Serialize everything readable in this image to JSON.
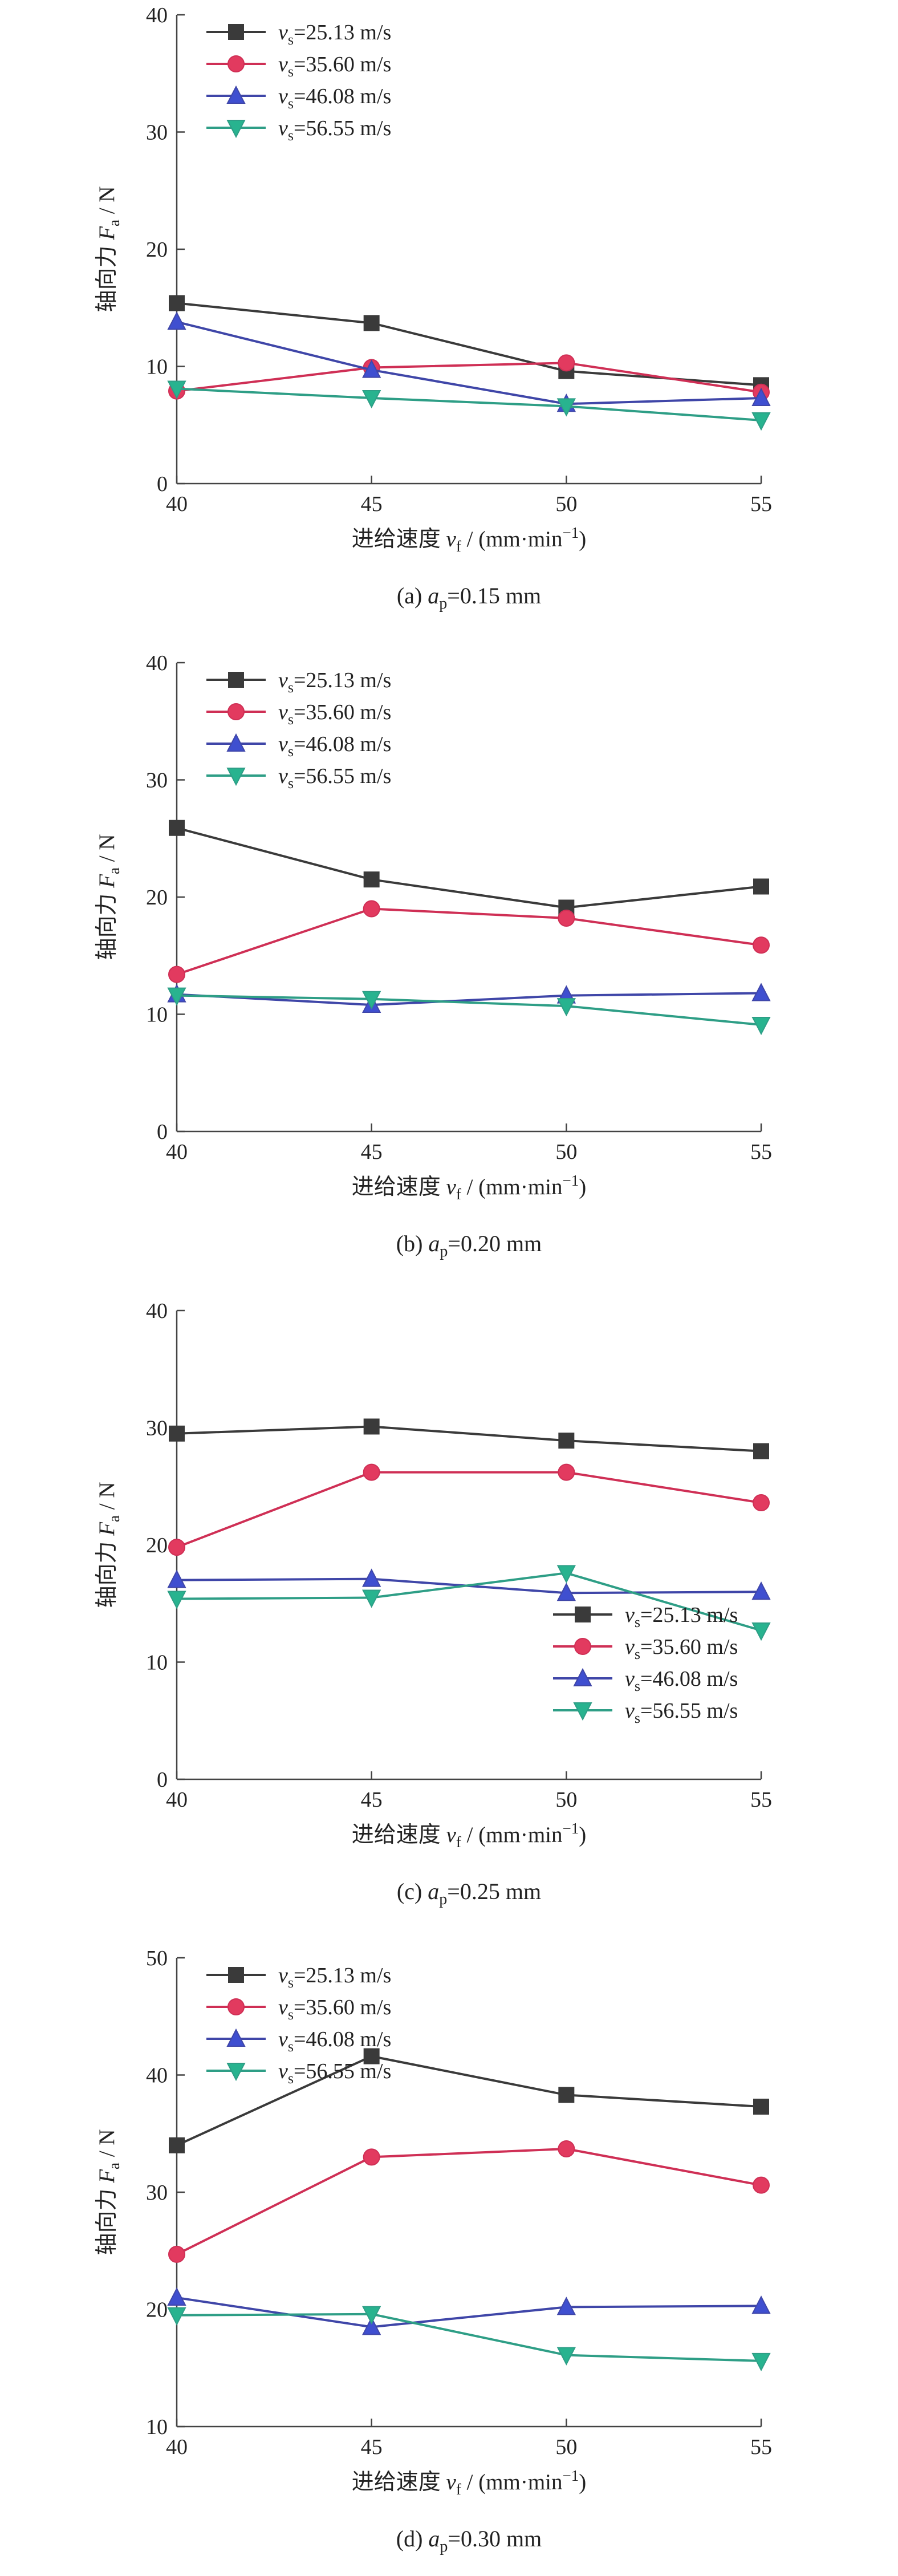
{
  "chart_data": [
    {
      "type": "line",
      "caption": {
        "prefix": "(a) ",
        "var": "a",
        "sub": "p",
        "rest": "=0.15 mm"
      },
      "xlabel": {
        "main": "进给速度 ",
        "var": "v",
        "sub": "f",
        "unit": " / (mm·min",
        "sup": "−1",
        "close": ")"
      },
      "ylabel": {
        "main": "轴向力 ",
        "var": "F",
        "sub": "a",
        "unit": " / N"
      },
      "x": [
        40,
        45,
        50,
        55
      ],
      "xlim": [
        40,
        55
      ],
      "ylim": [
        0,
        40
      ],
      "xticks": [
        "40",
        "45",
        "50",
        "55"
      ],
      "yticks": [
        "0",
        "10",
        "20",
        "30",
        "40"
      ],
      "ytick_values": [
        0,
        10,
        20,
        30,
        40
      ],
      "legend_position": "top-left",
      "series": [
        {
          "name": "vs=25.13 m/s",
          "values": [
            15.4,
            13.7,
            9.6,
            8.4
          ]
        },
        {
          "name": "vs=35.60 m/s",
          "values": [
            7.9,
            9.9,
            10.3,
            7.8
          ]
        },
        {
          "name": "vs=46.08 m/s",
          "values": [
            13.8,
            9.7,
            6.8,
            7.3
          ]
        },
        {
          "name": "vs=56.55 m/s",
          "values": [
            8.1,
            7.3,
            6.6,
            5.4
          ]
        }
      ]
    },
    {
      "type": "line",
      "caption": {
        "prefix": "(b) ",
        "var": "a",
        "sub": "p",
        "rest": "=0.20 mm"
      },
      "xlabel": {
        "main": "进给速度 ",
        "var": "v",
        "sub": "f",
        "unit": " / (mm·min",
        "sup": "−1",
        "close": ")"
      },
      "ylabel": {
        "main": "轴向力 ",
        "var": "F",
        "sub": "a",
        "unit": " / N"
      },
      "x": [
        40,
        45,
        50,
        55
      ],
      "xlim": [
        40,
        55
      ],
      "ylim": [
        0,
        40
      ],
      "xticks": [
        "40",
        "45",
        "50",
        "55"
      ],
      "yticks": [
        "0",
        "10",
        "20",
        "30",
        "40"
      ],
      "ytick_values": [
        0,
        10,
        20,
        30,
        40
      ],
      "legend_position": "top-left",
      "series": [
        {
          "name": "vs=25.13 m/s",
          "values": [
            25.9,
            21.5,
            19.1,
            20.9
          ]
        },
        {
          "name": "vs=35.60 m/s",
          "values": [
            13.4,
            19.0,
            18.2,
            15.9
          ]
        },
        {
          "name": "vs=46.08 m/s",
          "values": [
            11.7,
            10.8,
            11.6,
            11.8
          ]
        },
        {
          "name": "vs=56.55 m/s",
          "values": [
            11.6,
            11.3,
            10.7,
            9.1
          ]
        }
      ]
    },
    {
      "type": "line",
      "caption": {
        "prefix": "(c) ",
        "var": "a",
        "sub": "p",
        "rest": "=0.25 mm"
      },
      "xlabel": {
        "main": "进给速度 ",
        "var": "v",
        "sub": "f",
        "unit": " / (mm·min",
        "sup": "−1",
        "close": ")"
      },
      "ylabel": {
        "main": "轴向力 ",
        "var": "F",
        "sub": "a",
        "unit": " / N"
      },
      "x": [
        40,
        45,
        50,
        55
      ],
      "xlim": [
        40,
        55
      ],
      "ylim": [
        0,
        40
      ],
      "xticks": [
        "40",
        "45",
        "50",
        "55"
      ],
      "yticks": [
        "0",
        "10",
        "20",
        "30",
        "40"
      ],
      "ytick_values": [
        0,
        10,
        20,
        30,
        40
      ],
      "legend_position": "bottom-right",
      "series": [
        {
          "name": "vs=25.13 m/s",
          "values": [
            29.5,
            30.1,
            28.9,
            28.0
          ]
        },
        {
          "name": "vs=35.60 m/s",
          "values": [
            19.8,
            26.2,
            26.2,
            23.6
          ]
        },
        {
          "name": "vs=46.08 m/s",
          "values": [
            17.0,
            17.1,
            15.9,
            16.0
          ]
        },
        {
          "name": "vs=56.55 m/s",
          "values": [
            15.4,
            15.5,
            17.6,
            12.7
          ]
        }
      ]
    },
    {
      "type": "line",
      "caption": {
        "prefix": "(d) ",
        "var": "a",
        "sub": "p",
        "rest": "=0.30 mm"
      },
      "xlabel": {
        "main": "进给速度 ",
        "var": "v",
        "sub": "f",
        "unit": " / (mm·min",
        "sup": "−1",
        "close": ")"
      },
      "ylabel": {
        "main": "轴向力 ",
        "var": "F",
        "sub": "a",
        "unit": " / N"
      },
      "x": [
        40,
        45,
        50,
        55
      ],
      "xlim": [
        40,
        55
      ],
      "ylim": [
        10,
        50
      ],
      "xticks": [
        "40",
        "45",
        "50",
        "55"
      ],
      "yticks": [
        "10",
        "20",
        "30",
        "40",
        "50"
      ],
      "ytick_values": [
        10,
        20,
        30,
        40,
        50
      ],
      "legend_position": "top-left",
      "series": [
        {
          "name": "vs=25.13 m/s",
          "values": [
            34.0,
            41.6,
            38.3,
            37.3
          ]
        },
        {
          "name": "vs=35.60 m/s",
          "values": [
            24.7,
            33.0,
            33.7,
            30.6
          ]
        },
        {
          "name": "vs=46.08 m/s",
          "values": [
            21.0,
            18.5,
            20.2,
            20.3
          ]
        },
        {
          "name": "vs=56.55 m/s",
          "values": [
            19.5,
            19.6,
            16.1,
            15.6
          ]
        }
      ]
    }
  ],
  "series_style": [
    {
      "color": "#3a3a3a",
      "marker": "square-marker"
    },
    {
      "color": "#cf2f55",
      "marker": "circle-marker"
    },
    {
      "color": "#3f46a8",
      "marker": "triangle-up-marker"
    },
    {
      "color": "#2e9e86",
      "marker": "triangle-down-marker"
    }
  ],
  "marker_fill": [
    "#3a3a3a",
    "#e23a5f",
    "#3f4fd0",
    "#28b38f"
  ],
  "legend_labels": [
    {
      "var": "v",
      "sub": "s",
      "rest": "=25.13 m/s"
    },
    {
      "var": "v",
      "sub": "s",
      "rest": "=35.60 m/s"
    },
    {
      "var": "v",
      "sub": "s",
      "rest": "=46.08 m/s"
    },
    {
      "var": "v",
      "sub": "s",
      "rest": "=56.55 m/s"
    }
  ]
}
